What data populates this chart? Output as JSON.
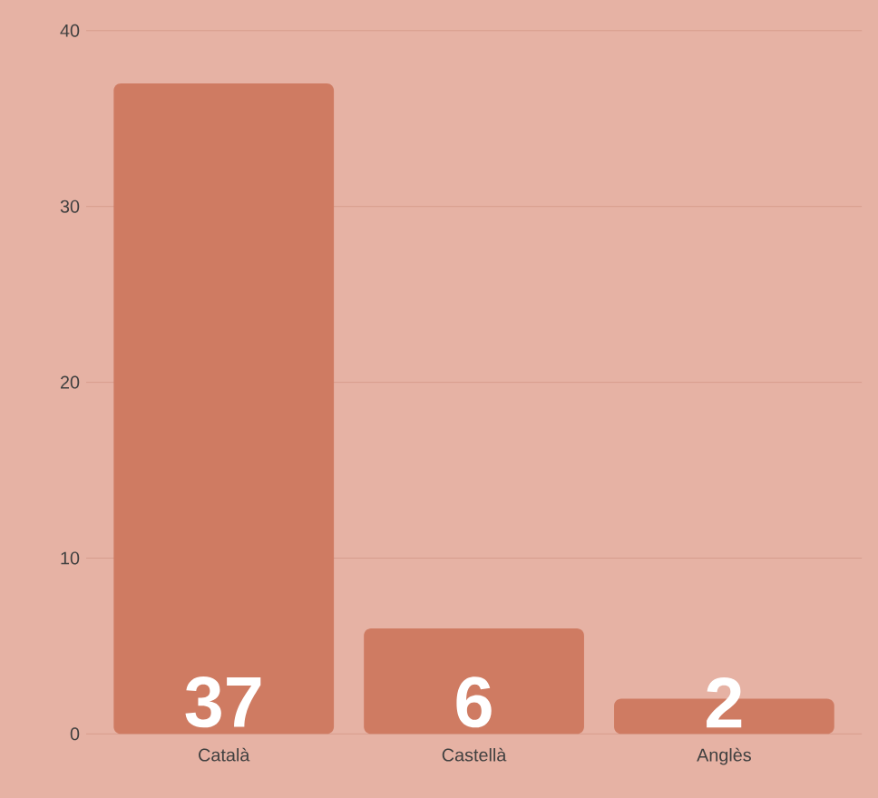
{
  "chart_data": {
    "type": "bar",
    "categories": [
      "Català",
      "Castellà",
      "Anglès"
    ],
    "values": [
      37,
      6,
      2
    ],
    "color": "#cf7b62",
    "ylim": [
      0,
      40
    ],
    "yticks": [
      0,
      10,
      20,
      30,
      40
    ],
    "grid": "y",
    "data_labels": true
  }
}
